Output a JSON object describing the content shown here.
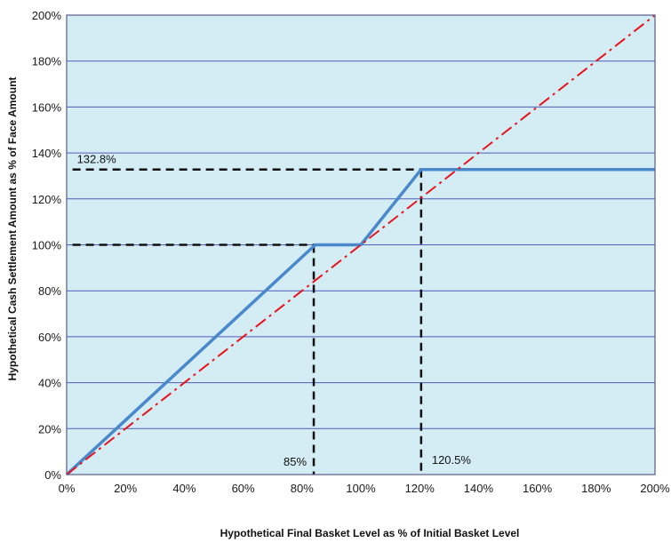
{
  "chart_data": {
    "type": "line",
    "title": "",
    "xlabel": "Hypothetical Final Basket Level as % of Initial Basket Level",
    "ylabel": "Hypothetical Cash Settlement Amount as % of Face Amount",
    "xlim": [
      0,
      200
    ],
    "ylim": [
      0,
      200
    ],
    "x_ticks": [
      "0%",
      "20%",
      "40%",
      "60%",
      "80%",
      "100%",
      "120%",
      "140%",
      "160%",
      "180%",
      "200%"
    ],
    "y_ticks": [
      "0%",
      "20%",
      "40%",
      "60%",
      "80%",
      "100%",
      "120%",
      "140%",
      "160%",
      "180%",
      "200%"
    ],
    "grid": "horizontal",
    "colors": {
      "plot_background": "#d4ecf4",
      "grid": "#4f5bbd",
      "payoff_line": "#4a88cc",
      "reference_line": "#e8141c",
      "guide_line": "#111111"
    },
    "series": [
      {
        "style": "solid",
        "x": [
          0,
          84.5,
          100,
          120.5,
          200
        ],
        "y": [
          0,
          100,
          100,
          132.8,
          132.8
        ]
      },
      {
        "style": "dash-dot",
        "x": [
          0,
          200
        ],
        "y": [
          0,
          200
        ]
      }
    ],
    "annotations": [
      {
        "label": "132.8%",
        "kind": "y-level",
        "x": 120.5,
        "y": 132.8
      },
      {
        "label": "",
        "kind": "y-level",
        "x": 85,
        "y": 100
      },
      {
        "label": "85%",
        "kind": "x-level",
        "x": 84,
        "y": 100
      },
      {
        "label": "120.5%",
        "kind": "x-level",
        "x": 120.5,
        "y": 132.8
      }
    ]
  }
}
